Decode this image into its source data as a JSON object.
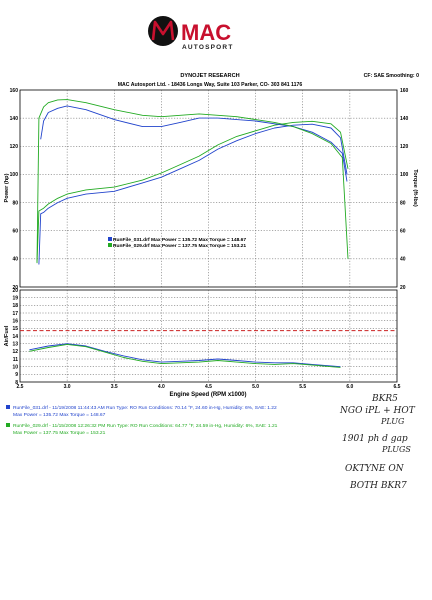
{
  "logo": {
    "brand_top": "MAC",
    "brand_bottom": "AUTOSPORT",
    "accent_color": "#c8102e"
  },
  "header": {
    "title": "DYNOJET RESEARCH",
    "settings": "CF: SAE  Smoothing: 0",
    "address": "MAC Autosport Ltd. - 18436 Longs Way, Suite 103 Parker, CO- 303 841 1176"
  },
  "chart_data": [
    {
      "type": "line",
      "title": "",
      "xlabel": "",
      "ylabel": "Power (hp)",
      "ylabel_right": "Torque (ft-lbs)",
      "xlim": [
        2.5,
        6.5
      ],
      "ylim": [
        20,
        160
      ],
      "ylim_right": [
        20,
        160
      ],
      "yticks": [
        20,
        40,
        60,
        80,
        100,
        120,
        140,
        160
      ],
      "grid": true,
      "legend": [
        "RunFile_031.drf  Max Power = 135.72   Max Torque = 148.67",
        "RunFile_029.drf  Max Power = 137.75   Max Torque = 153.21"
      ],
      "series": [
        {
          "name": "RunFile_031.drf",
          "quantity": "power",
          "color": "#2244cc",
          "x": [
            2.7,
            2.72,
            2.75,
            2.8,
            2.9,
            3.0,
            3.2,
            3.5,
            3.8,
            4.0,
            4.2,
            4.4,
            4.6,
            4.8,
            5.0,
            5.2,
            5.4,
            5.6,
            5.8,
            5.9,
            5.97
          ],
          "y": [
            36,
            72,
            73,
            76,
            80,
            83,
            86,
            88,
            94,
            98,
            104,
            110,
            118,
            124,
            129,
            133,
            135,
            135.7,
            133,
            126,
            100
          ]
        },
        {
          "name": "RunFile_029.drf",
          "quantity": "power",
          "color": "#22aa22",
          "x": [
            2.68,
            2.7,
            2.75,
            2.8,
            2.9,
            3.0,
            3.2,
            3.5,
            3.8,
            4.0,
            4.2,
            4.4,
            4.6,
            4.8,
            5.0,
            5.2,
            5.4,
            5.6,
            5.8,
            5.9,
            5.98
          ],
          "y": [
            37,
            74,
            76,
            79,
            83,
            86,
            89,
            91,
            96,
            101,
            107,
            113,
            121,
            127,
            131,
            135,
            137,
            137.75,
            136,
            130,
            104
          ]
        },
        {
          "name": "RunFile_031.drf",
          "quantity": "torque",
          "color": "#2244cc",
          "x": [
            2.72,
            2.75,
            2.8,
            2.9,
            3.0,
            3.2,
            3.5,
            3.8,
            4.0,
            4.2,
            4.4,
            4.6,
            4.8,
            5.0,
            5.2,
            5.4,
            5.6,
            5.8,
            5.92,
            5.97
          ],
          "y": [
            125,
            138,
            144,
            147,
            148.67,
            146,
            139,
            134,
            134,
            137,
            140,
            140,
            139,
            138,
            136,
            134,
            130,
            123,
            115,
            95
          ]
        },
        {
          "name": "RunFile_029.drf",
          "quantity": "torque",
          "color": "#22aa22",
          "x": [
            2.68,
            2.7,
            2.75,
            2.8,
            2.9,
            3.0,
            3.2,
            3.5,
            3.8,
            4.0,
            4.2,
            4.4,
            4.6,
            4.8,
            5.0,
            5.2,
            5.4,
            5.6,
            5.8,
            5.92,
            5.98
          ],
          "y": [
            38,
            140,
            148,
            151,
            153,
            153.21,
            151,
            146,
            142,
            141,
            142,
            143,
            142,
            141,
            139,
            137,
            134,
            129,
            122,
            112,
            40
          ]
        }
      ]
    },
    {
      "type": "line",
      "title": "",
      "xlabel": "Engine Speed (RPM x1000)",
      "ylabel": "Air/Fuel",
      "xlim": [
        2.5,
        6.5
      ],
      "ylim": [
        8,
        20
      ],
      "xticks": [
        2.5,
        3.0,
        3.5,
        4.0,
        4.5,
        5.0,
        5.5,
        6.0,
        6.5
      ],
      "yticks": [
        8,
        9,
        10,
        11,
        12,
        13,
        14,
        15,
        16,
        17,
        18,
        19,
        20
      ],
      "grid": true,
      "reference": {
        "value": 14.7,
        "color": "#cc2222"
      },
      "series": [
        {
          "name": "RunFile_031.drf",
          "color": "#2244cc",
          "x": [
            2.6,
            2.8,
            3.0,
            3.2,
            3.4,
            3.6,
            3.8,
            4.0,
            4.2,
            4.4,
            4.6,
            4.8,
            5.0,
            5.2,
            5.4,
            5.6,
            5.8,
            5.9
          ],
          "y": [
            12.2,
            12.7,
            13.0,
            12.7,
            12.0,
            11.4,
            10.9,
            10.6,
            10.7,
            10.8,
            11.0,
            10.8,
            10.6,
            10.5,
            10.5,
            10.3,
            10.1,
            10.0
          ]
        },
        {
          "name": "RunFile_029.drf",
          "color": "#22aa22",
          "x": [
            2.6,
            2.8,
            3.0,
            3.2,
            3.4,
            3.6,
            3.8,
            4.0,
            4.2,
            4.4,
            4.6,
            4.8,
            5.0,
            5.2,
            5.4,
            5.6,
            5.8,
            5.9
          ],
          "y": [
            12.0,
            12.5,
            12.9,
            12.6,
            11.9,
            11.2,
            10.7,
            10.4,
            10.5,
            10.6,
            10.8,
            10.6,
            10.4,
            10.3,
            10.4,
            10.2,
            10.0,
            9.9
          ]
        }
      ]
    }
  ],
  "runs": [
    {
      "color": "#2244cc",
      "line1": "RunFile_031.drf - 11/19/2008 11:44:43 AM  Run Type: RO  Run Conditions: 70.14 °F, 24.60 in-Hg,  Humidity: 6%, SAE: 1.22",
      "line2": "Max Power = 135.72  Max Torque = 148.67"
    },
    {
      "color": "#22aa22",
      "line1": "RunFile_029.drf - 11/15/2008 12:26:32 PM  Run Type: RO  Run Conditions: 64.77 °F, 24.59 in-Hg,  Humidity: 6%, SAE: 1.21",
      "line2": "Max Power = 137.75  Max Torque = 153.21"
    }
  ],
  "handwritten": [
    "BKR5",
    "NGO iPL + HOT",
    "PLUG",
    "1901 ph d gap",
    "PLUGS",
    "OKTYNE ON",
    "BOTH   BKR7"
  ]
}
